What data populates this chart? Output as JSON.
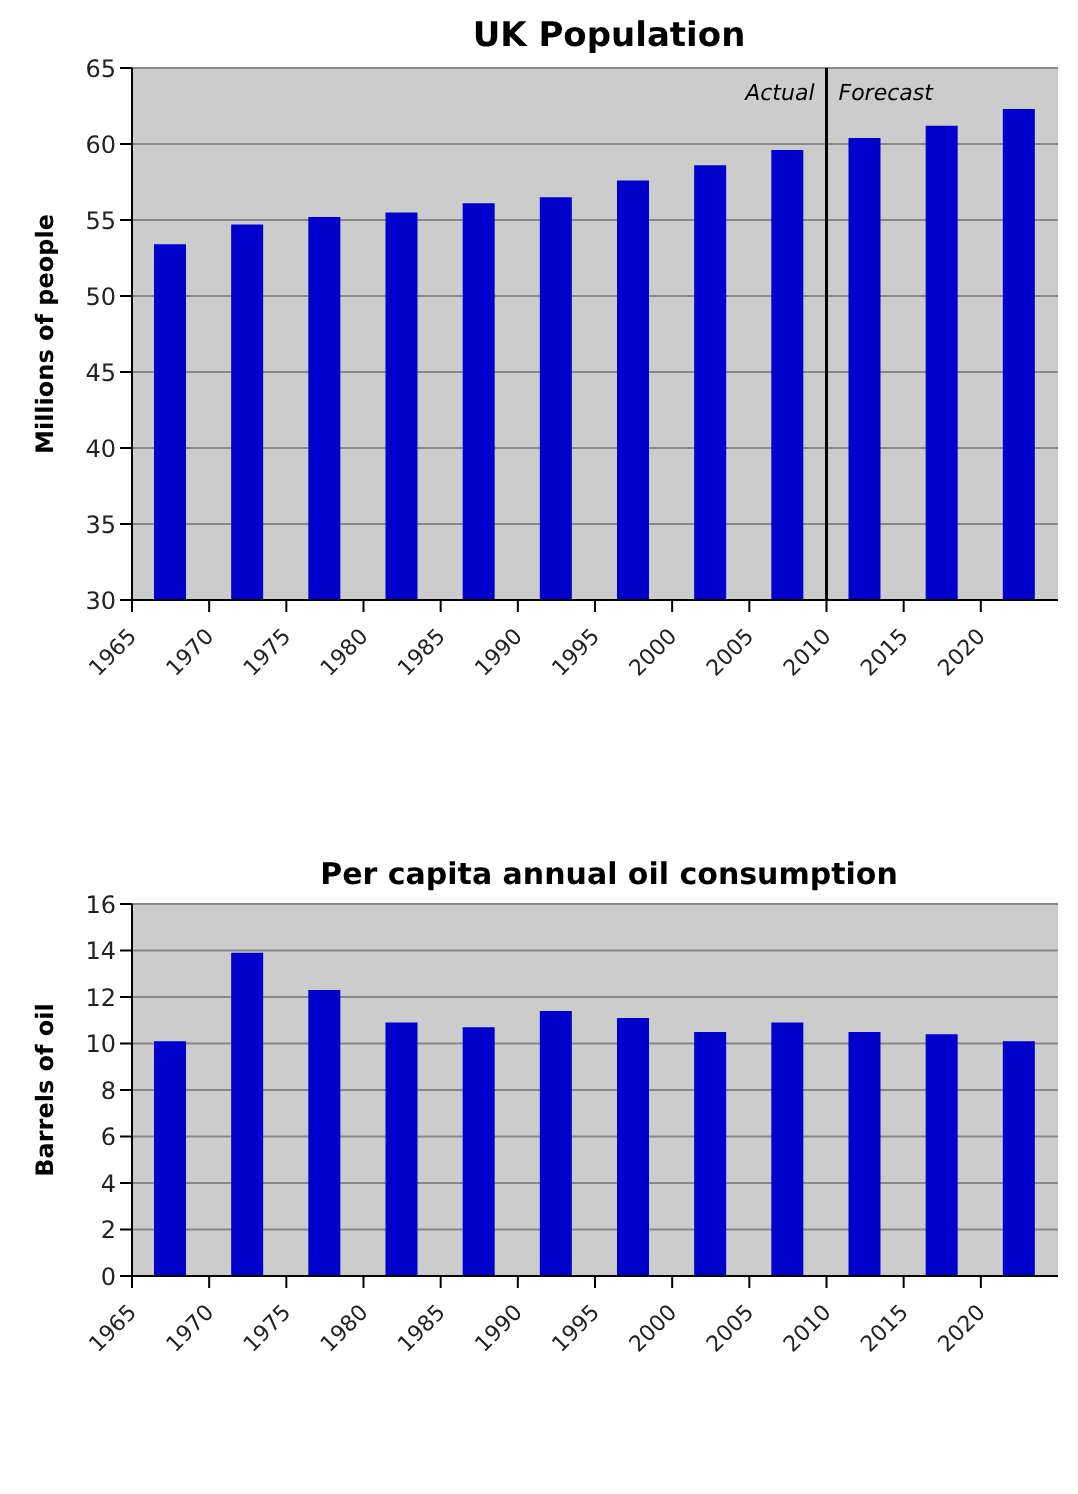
{
  "chart_data": [
    {
      "type": "bar",
      "title": "UK Population",
      "ylabel": "Millions of people",
      "x": [
        1967.5,
        1972.5,
        1977.5,
        1982.5,
        1987.5,
        1992.5,
        1997.5,
        2002.5,
        2007.5,
        2012.5,
        2017.5,
        2022.5
      ],
      "values": [
        53.4,
        54.7,
        55.2,
        55.5,
        56.1,
        56.5,
        57.6,
        58.6,
        59.6,
        60.4,
        61.2,
        62.3
      ],
      "color": "#0000cc",
      "xlim": [
        1965,
        2025
      ],
      "xticks": [
        1965,
        1970,
        1975,
        1980,
        1985,
        1990,
        1995,
        2000,
        2005,
        2010,
        2015,
        2020
      ],
      "ylim": [
        30,
        65
      ],
      "yticks": [
        30,
        35,
        40,
        45,
        50,
        55,
        60,
        65
      ],
      "grid": "y",
      "ref_lines": [
        {
          "axis": "x",
          "value": 2010,
          "color": "#000000"
        }
      ],
      "annotations": [
        "Actual",
        "Forecast"
      ]
    },
    {
      "type": "bar",
      "title": "Per capita annual oil consumption",
      "ylabel": "Barrels of oil",
      "x": [
        1967.5,
        1972.5,
        1977.5,
        1982.5,
        1987.5,
        1992.5,
        1997.5,
        2002.5,
        2007.5,
        2012.5,
        2017.5,
        2022.5
      ],
      "values": [
        10.1,
        13.9,
        12.3,
        10.9,
        10.7,
        11.4,
        11.1,
        10.5,
        10.9,
        10.5,
        10.4,
        10.1
      ],
      "color": "#0000cc",
      "xlim": [
        1965,
        2025
      ],
      "xticks": [
        1965,
        1970,
        1975,
        1980,
        1985,
        1990,
        1995,
        2000,
        2005,
        2010,
        2015,
        2020
      ],
      "ylim": [
        0,
        16
      ],
      "yticks": [
        0,
        2,
        4,
        6,
        8,
        10,
        12,
        14,
        16
      ],
      "grid": "y"
    }
  ]
}
